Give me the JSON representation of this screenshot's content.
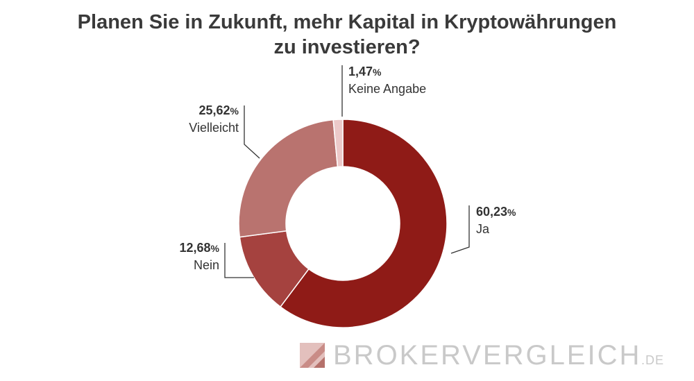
{
  "chart_data": {
    "type": "pie",
    "title": "Planen Sie in Zukunft, mehr Kapital in Kryptowährungen zu investieren?",
    "title_lines": [
      "Planen Sie in Zukunft, mehr Kapital in Kryptowährungen",
      "zu investieren?"
    ],
    "donut": true,
    "slices": [
      {
        "label": "Ja",
        "value": 60.23,
        "value_text": "60,23",
        "color": "#8f1b17"
      },
      {
        "label": "Nein",
        "value": 12.68,
        "value_text": "12,68",
        "color": "#a5423f"
      },
      {
        "label": "Vielleicht",
        "value": 25.62,
        "value_text": "25,62",
        "color": "#b9736f"
      },
      {
        "label": "Keine Angabe",
        "value": 1.47,
        "value_text": "1,47",
        "color": "#ecc9c9"
      }
    ],
    "percent_sign": "%"
  },
  "branding": {
    "logo_text": "BROKERVERGLEICH",
    "logo_tld": ".DE",
    "logo_color": "#c9c9c9",
    "logo_icon_color": "#d9a9a5"
  }
}
